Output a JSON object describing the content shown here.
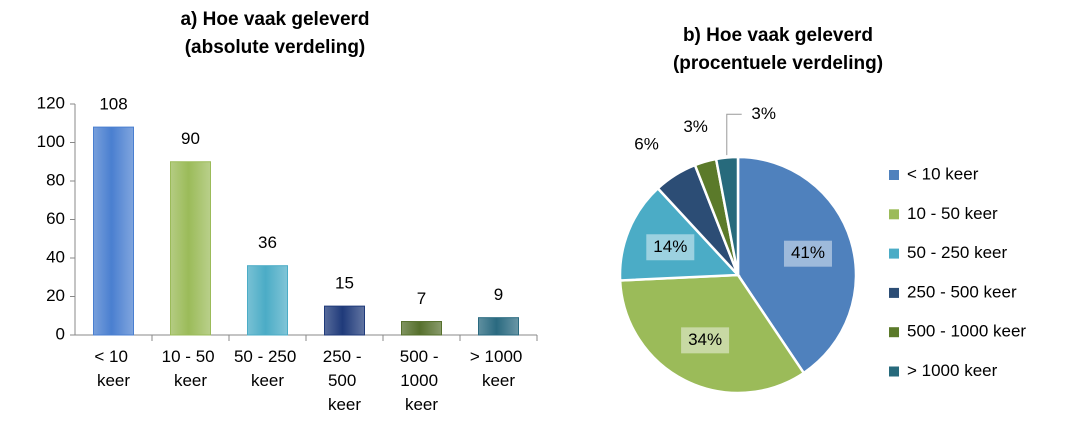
{
  "chart_data": [
    {
      "type": "bar",
      "title": [
        "a) Hoe vaak geleverd",
        "(absolute verdeling)"
      ],
      "categories": [
        "< 10 keer",
        "10 - 50 keer",
        "50 - 250 keer",
        "250 - 500 keer",
        "500 - 1000 keer",
        "> 1000 keer"
      ],
      "values": [
        108,
        90,
        36,
        15,
        7,
        9
      ],
      "colors": [
        "#4a7fd0",
        "#9bbb59",
        "#4bacc6",
        "#1f3a7a",
        "#56702c",
        "#2a6a80"
      ],
      "ylim": [
        0,
        120
      ],
      "yticks": [
        0,
        20,
        40,
        60,
        80,
        100,
        120
      ],
      "grid": false
    },
    {
      "type": "pie",
      "title": [
        "b) Hoe vaak geleverd",
        "(procentuele verdeling)"
      ],
      "categories": [
        "< 10 keer",
        "10 - 50 keer",
        "50 - 250 keer",
        "250 - 500 keer",
        "500 - 1000 keer",
        "> 1000 keer"
      ],
      "values": [
        41,
        34,
        14,
        6,
        3,
        3
      ],
      "value_labels": [
        "41%",
        "34%",
        "14%",
        "6%",
        "3%",
        "3%"
      ],
      "colors": [
        "#4f81bd",
        "#9bbb59",
        "#4bacc6",
        "#2c4d75",
        "#5b7a2a",
        "#276a7c"
      ],
      "legend": "right"
    }
  ]
}
